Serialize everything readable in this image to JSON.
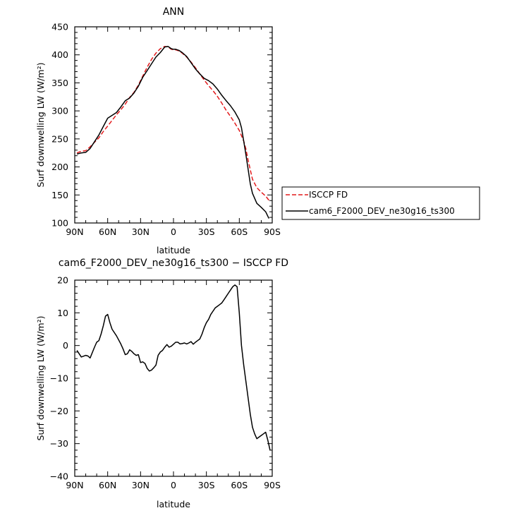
{
  "chart_data": [
    {
      "type": "line",
      "title": "ANN",
      "xlabel": "latitude",
      "ylabel": "Surf downwelling LW (W/m²)",
      "xlim": [
        90,
        -90
      ],
      "ylim": [
        100,
        450
      ],
      "x_ticks": [
        90,
        60,
        30,
        0,
        -30,
        -60,
        -90
      ],
      "x_tick_labels": [
        "90N",
        "60N",
        "30N",
        "0",
        "30S",
        "60S",
        "90S"
      ],
      "y_ticks": [
        100,
        150,
        200,
        250,
        300,
        350,
        400,
        450
      ],
      "y_tick_labels": [
        "100",
        "150",
        "200",
        "250",
        "300",
        "350",
        "400",
        "450"
      ],
      "legend_position": "right",
      "series": [
        {
          "name": "ISCCP FD",
          "color": "#e31a1c",
          "dash": "dashed",
          "x": [
            88,
            84,
            80,
            76,
            72,
            68,
            64,
            60,
            56,
            52,
            48,
            44,
            40,
            36,
            32,
            28,
            24,
            20,
            16,
            12,
            8,
            5,
            2,
            0,
            -2,
            -5,
            -8,
            -12,
            -16,
            -20,
            -24,
            -28,
            -32,
            -36,
            -40,
            -44,
            -48,
            -52,
            -56,
            -60,
            -64,
            -66,
            -68,
            -70,
            -72,
            -76,
            -80,
            -84,
            -88
          ],
          "y": [
            225,
            228,
            229,
            236,
            244,
            252,
            263,
            273,
            283,
            293,
            302,
            312,
            324,
            333,
            346,
            362,
            378,
            392,
            403,
            411,
            415,
            414,
            410,
            409,
            409,
            407,
            403,
            396,
            387,
            377,
            366,
            355,
            345,
            336,
            326,
            314,
            301,
            290,
            278,
            265,
            246,
            232,
            212,
            195,
            178,
            163,
            155,
            148,
            138
          ]
        },
        {
          "name": "cam6_F2000_DEV_ne30g16_ts300",
          "color": "#000000",
          "dash": "solid",
          "x": [
            88,
            84,
            80,
            76,
            72,
            68,
            64,
            60,
            56,
            52,
            48,
            44,
            40,
            36,
            32,
            28,
            24,
            20,
            16,
            12,
            8,
            5,
            2,
            0,
            -2,
            -5,
            -8,
            -12,
            -16,
            -20,
            -24,
            -28,
            -32,
            -36,
            -40,
            -44,
            -48,
            -52,
            -56,
            -60,
            -62,
            -64,
            -66,
            -68,
            -70,
            -72,
            -76,
            -80,
            -84,
            -87
          ],
          "y": [
            223,
            225,
            226,
            233,
            245,
            257,
            272,
            287,
            292,
            297,
            307,
            318,
            323,
            332,
            344,
            360,
            372,
            384,
            396,
            404,
            414,
            415,
            411,
            410,
            410,
            408,
            404,
            397,
            386,
            375,
            366,
            358,
            354,
            348,
            339,
            328,
            318,
            309,
            298,
            284,
            270,
            246,
            222,
            196,
            170,
            153,
            135,
            128,
            120,
            108
          ]
        }
      ]
    },
    {
      "type": "line",
      "title": "cam6_F2000_DEV_ne30g16_ts300 − ISCCP FD",
      "xlabel": "latitude",
      "ylabel": "Surf downwelling LW (W/m²)",
      "xlim": [
        90,
        -90
      ],
      "ylim": [
        -40,
        20
      ],
      "x_ticks": [
        90,
        60,
        30,
        0,
        -30,
        -60,
        -90
      ],
      "x_tick_labels": [
        "90N",
        "60N",
        "30N",
        "0",
        "30S",
        "60S",
        "90S"
      ],
      "y_ticks": [
        -40,
        -30,
        -20,
        -10,
        0,
        10,
        20
      ],
      "y_tick_labels": [
        "−40",
        "−30",
        "−20",
        "−10",
        "0",
        "10",
        "20"
      ],
      "series": [
        {
          "color": "#000000",
          "dash": "solid",
          "x": [
            88,
            84,
            80,
            78,
            76,
            72,
            70,
            68,
            66,
            64,
            62,
            60,
            58,
            56,
            52,
            48,
            46,
            44,
            42,
            40,
            38,
            36,
            34,
            32,
            30,
            28,
            26,
            24,
            22,
            20,
            18,
            16,
            14,
            12,
            10,
            8,
            6,
            4,
            2,
            0,
            -2,
            -4,
            -6,
            -8,
            -10,
            -12,
            -14,
            -16,
            -18,
            -20,
            -22,
            -24,
            -26,
            -28,
            -30,
            -32,
            -34,
            -36,
            -38,
            -40,
            -42,
            -44,
            -46,
            -48,
            -50,
            -52,
            -54,
            -56,
            -58,
            -60,
            -62,
            -64,
            -66,
            -68,
            -70,
            -72,
            -74,
            -76,
            -78,
            -80,
            -82,
            -84,
            -86,
            -88
          ],
          "y": [
            -1.5,
            -3.5,
            -3.0,
            -3.2,
            -3.8,
            -0.5,
            1.0,
            1.5,
            3.5,
            6.0,
            9.0,
            9.5,
            7.0,
            5.0,
            3.0,
            0.5,
            -1.0,
            -2.8,
            -2.5,
            -1.3,
            -1.8,
            -2.5,
            -3.0,
            -2.8,
            -5.2,
            -5.0,
            -5.5,
            -7.0,
            -7.8,
            -7.5,
            -6.8,
            -6.0,
            -3.0,
            -2.0,
            -1.5,
            -0.5,
            0.3,
            -0.5,
            -0.2,
            0.4,
            1.0,
            1.0,
            0.5,
            0.6,
            0.8,
            0.5,
            0.8,
            1.2,
            0.4,
            1.0,
            1.5,
            2.0,
            3.5,
            5.5,
            7.0,
            8.0,
            9.5,
            10.5,
            11.5,
            12.0,
            12.5,
            13.0,
            14.0,
            15.0,
            16.0,
            17.0,
            18.0,
            18.5,
            18.0,
            10.0,
            0.0,
            -6.0,
            -11.0,
            -16.0,
            -21.0,
            -25.0,
            -27.0,
            -28.5,
            -28.0,
            -27.5,
            -27.0,
            -26.5,
            -29.0,
            -32.0
          ]
        }
      ]
    }
  ]
}
